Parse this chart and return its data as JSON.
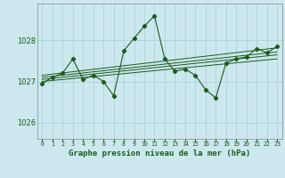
{
  "title": "Graphe pression niveau de la mer (hPa)",
  "bg_color": "#cce8ee",
  "grid_color": "#aad4d8",
  "line_color": "#1a5c1a",
  "xlim": [
    -0.5,
    23.5
  ],
  "ylim": [
    1025.6,
    1028.9
  ],
  "yticks": [
    1026,
    1027,
    1028
  ],
  "xticks": [
    0,
    1,
    2,
    3,
    4,
    5,
    6,
    7,
    8,
    9,
    10,
    11,
    12,
    13,
    14,
    15,
    16,
    17,
    18,
    19,
    20,
    21,
    22,
    23
  ],
  "hours": [
    0,
    1,
    2,
    3,
    4,
    5,
    6,
    7,
    8,
    9,
    10,
    11,
    12,
    13,
    14,
    15,
    16,
    17,
    18,
    19,
    20,
    21,
    22,
    23
  ],
  "pressure": [
    1026.95,
    1027.1,
    1027.2,
    1027.55,
    1027.05,
    1027.15,
    1027.0,
    1026.65,
    1027.75,
    1028.05,
    1028.35,
    1028.6,
    1027.55,
    1027.25,
    1027.3,
    1027.15,
    1026.8,
    1026.6,
    1027.45,
    1027.55,
    1027.6,
    1027.8,
    1027.7,
    1027.85
  ],
  "trend_lines": [
    {
      "x": [
        0,
        23
      ],
      "y": [
        1027.0,
        1027.55
      ]
    },
    {
      "x": [
        0,
        23
      ],
      "y": [
        1027.05,
        1027.65
      ]
    },
    {
      "x": [
        0,
        23
      ],
      "y": [
        1027.1,
        1027.72
      ]
    },
    {
      "x": [
        0,
        23
      ],
      "y": [
        1027.15,
        1027.82
      ]
    }
  ]
}
